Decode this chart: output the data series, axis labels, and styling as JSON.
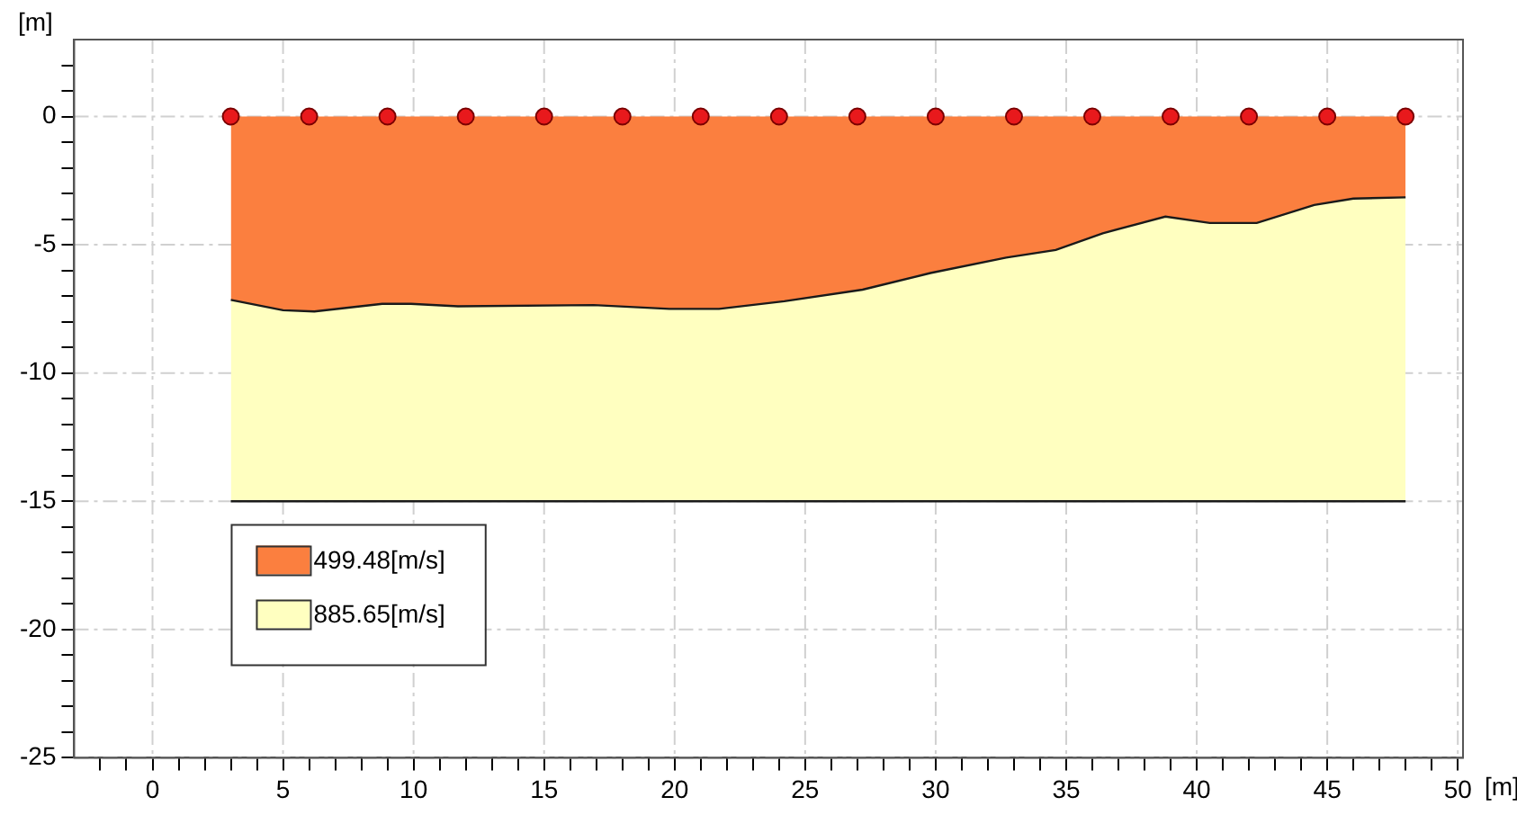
{
  "chart_data": {
    "type": "area",
    "xlabel": "[m]",
    "ylabel": "[m]",
    "xlim": [
      -3,
      50.2
    ],
    "ylim": [
      -25,
      3
    ],
    "xticks": [
      {
        "value": -2,
        "label": null
      },
      {
        "value": -1,
        "label": null
      },
      0,
      {
        "value": 1,
        "label": null
      },
      {
        "value": 2,
        "label": null
      },
      {
        "value": 3,
        "label": null
      },
      {
        "value": 4,
        "label": null
      },
      5,
      {
        "value": 6,
        "label": null
      },
      {
        "value": 7,
        "label": null
      },
      {
        "value": 8,
        "label": null
      },
      {
        "value": 9,
        "label": null
      },
      10,
      {
        "value": 11,
        "label": null
      },
      {
        "value": 12,
        "label": null
      },
      {
        "value": 13,
        "label": null
      },
      {
        "value": 14,
        "label": null
      },
      15,
      {
        "value": 16,
        "label": null
      },
      {
        "value": 17,
        "label": null
      },
      {
        "value": 18,
        "label": null
      },
      {
        "value": 19,
        "label": null
      },
      20,
      {
        "value": 21,
        "label": null
      },
      {
        "value": 22,
        "label": null
      },
      {
        "value": 23,
        "label": null
      },
      {
        "value": 24,
        "label": null
      },
      25,
      {
        "value": 26,
        "label": null
      },
      {
        "value": 27,
        "label": null
      },
      {
        "value": 28,
        "label": null
      },
      {
        "value": 29,
        "label": null
      },
      30,
      {
        "value": 31,
        "label": null
      },
      {
        "value": 32,
        "label": null
      },
      {
        "value": 33,
        "label": null
      },
      {
        "value": 34,
        "label": null
      },
      35,
      {
        "value": 36,
        "label": null
      },
      {
        "value": 37,
        "label": null
      },
      {
        "value": 38,
        "label": null
      },
      {
        "value": 39,
        "label": null
      },
      40,
      {
        "value": 41,
        "label": null
      },
      {
        "value": 42,
        "label": null
      },
      {
        "value": 43,
        "label": null
      },
      {
        "value": 44,
        "label": null
      },
      45,
      {
        "value": 46,
        "label": null
      },
      {
        "value": 47,
        "label": null
      },
      {
        "value": 48,
        "label": null
      },
      {
        "value": 49,
        "label": null
      },
      50
    ],
    "yticks": [
      -25,
      {
        "value": -24,
        "label": null
      },
      {
        "value": -23,
        "label": null
      },
      {
        "value": -22,
        "label": null
      },
      {
        "value": -21,
        "label": null
      },
      -20,
      {
        "value": -19,
        "label": null
      },
      {
        "value": -18,
        "label": null
      },
      {
        "value": -17,
        "label": null
      },
      {
        "value": -16,
        "label": null
      },
      -15,
      {
        "value": -14,
        "label": null
      },
      {
        "value": -13,
        "label": null
      },
      {
        "value": -12,
        "label": null
      },
      {
        "value": -11,
        "label": null
      },
      -10,
      {
        "value": -9,
        "label": null
      },
      {
        "value": -8,
        "label": null
      },
      {
        "value": -7,
        "label": null
      },
      {
        "value": -6,
        "label": null
      },
      -5,
      {
        "value": -4,
        "label": null
      },
      {
        "value": -3,
        "label": null
      },
      {
        "value": -2,
        "label": null
      },
      {
        "value": -1,
        "label": null
      },
      0,
      {
        "value": 1,
        "label": null
      },
      {
        "value": 2,
        "label": null
      }
    ],
    "grid": true,
    "legend": "bottom left",
    "stacked": true,
    "x": [
      3,
      5,
      6.2,
      8.8,
      9.9,
      11.7,
      16.9,
      19.8,
      21.7,
      24.2,
      27.2,
      29.8,
      32.7,
      34.6,
      36.4,
      38.8,
      40.5,
      42.3,
      44.5,
      46,
      48
    ],
    "series": [
      {
        "name": "499.48[m/s]",
        "color": "#fb7f3f",
        "values": [
          -7.15,
          -7.55,
          -7.6,
          -7.3,
          -7.3,
          -7.4,
          -7.35,
          -7.5,
          -7.5,
          -7.2,
          -6.75,
          -6.1,
          -5.5,
          -5.2,
          -4.55,
          -3.9,
          -4.15,
          -4.15,
          -3.45,
          -3.2,
          -3.15
        ]
      },
      {
        "name": "885.65[m/s]",
        "color": "#ffffc0",
        "values": [
          -7.85,
          -7.45,
          -7.4,
          -7.7,
          -7.7,
          -7.6,
          -7.65,
          -7.5,
          -7.5,
          -7.8,
          -8.25,
          -8.9,
          -9.5,
          -9.8,
          -10.45,
          -11.1,
          -10.85,
          -10.85,
          -11.55,
          -11.8,
          -11.85
        ]
      },
      {
        "type": "scatter",
        "color": "#e8191c",
        "marker": "circle",
        "x": [
          3,
          6,
          9,
          12,
          15,
          18,
          21,
          24,
          27,
          30,
          33,
          36,
          39,
          42,
          45,
          48
        ],
        "values": [
          0,
          0,
          0,
          0,
          0,
          0,
          0,
          0,
          0,
          0,
          0,
          0,
          0,
          0,
          0,
          0
        ]
      }
    ]
  }
}
